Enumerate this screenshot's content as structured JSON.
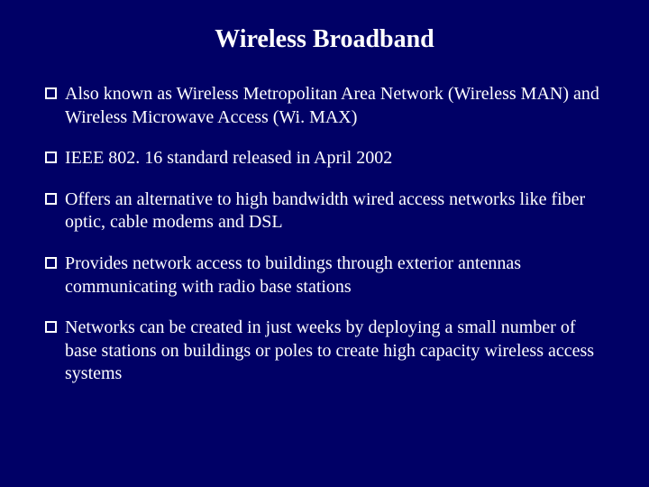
{
  "background_color": "#000066",
  "text_color": "#ffffff",
  "font_family": "Times New Roman",
  "title": "Wireless Broadband",
  "title_fontsize": 28,
  "bullet_fontsize": 20,
  "bullet_marker": {
    "size": 13,
    "border_width": 2,
    "border_color": "#ffffff"
  },
  "bullets": [
    "Also known as Wireless Metropolitan Area Network (Wireless MAN) and Wireless Microwave Access (Wi. MAX)",
    "IEEE 802. 16 standard released in April 2002",
    "Offers an alternative to high bandwidth wired access networks like fiber optic, cable modems and DSL",
    "Provides network access to buildings through exterior antennas communicating with radio base stations",
    "Networks can be created in just weeks by deploying a small number of base stations on buildings or poles to create high capacity wireless access systems"
  ]
}
